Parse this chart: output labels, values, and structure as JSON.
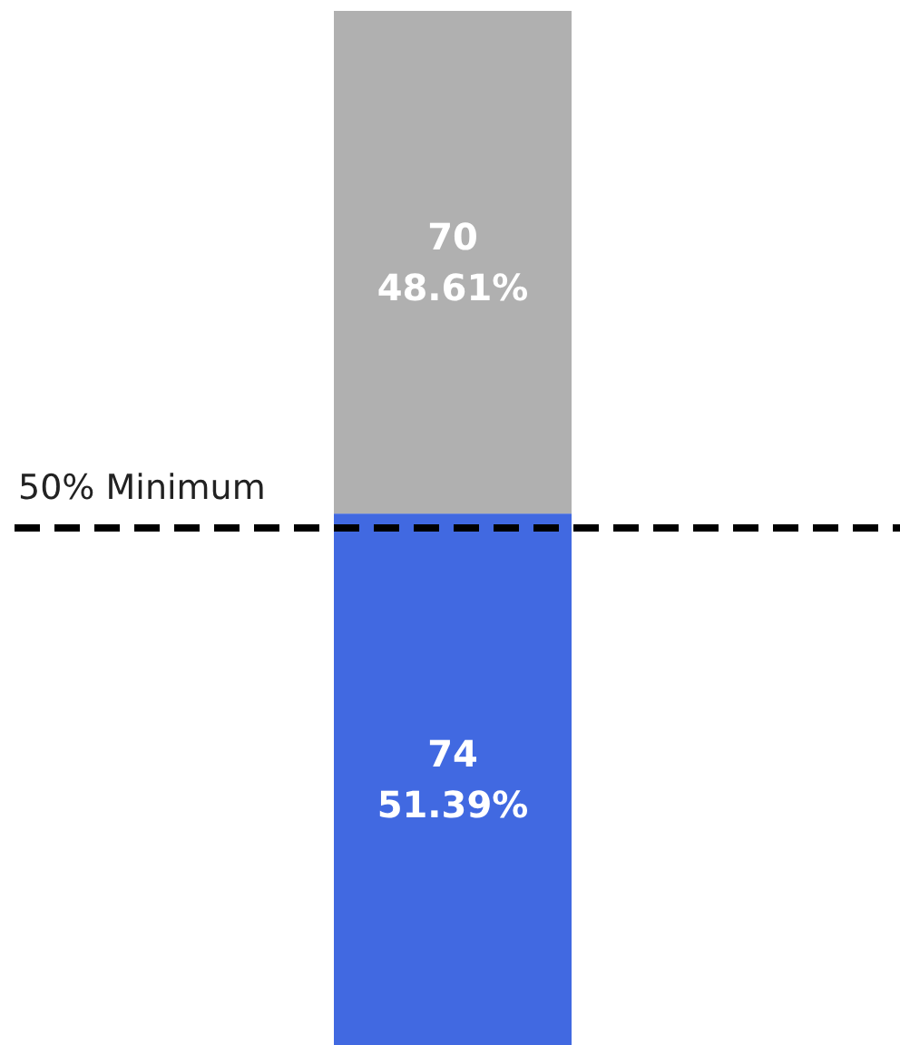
{
  "chart_data": {
    "type": "bar",
    "stacked": true,
    "categories": [
      null
    ],
    "series": [
      {
        "color": "#4169e1",
        "values": [
          74
        ],
        "value_labels": [
          "74\n51.39%"
        ]
      },
      {
        "color": "#b0b0b0",
        "values": [
          70
        ],
        "value_labels": [
          "70\n48.61%"
        ]
      }
    ],
    "ref_lines": [
      {
        "axis": "y",
        "value": 72,
        "label": "50% Minimum",
        "color": "#000000",
        "line_style": "dashed"
      }
    ]
  }
}
